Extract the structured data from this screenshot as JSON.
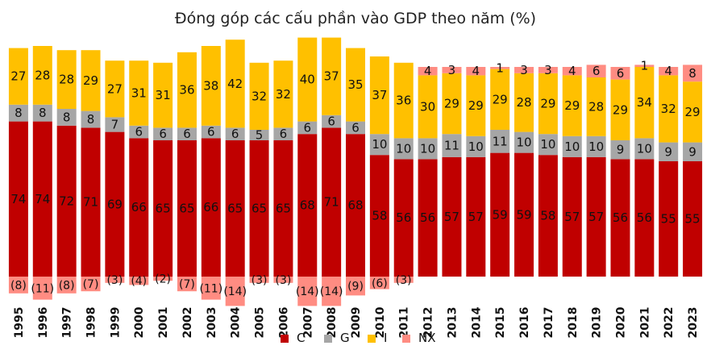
{
  "chart_data": {
    "type": "bar",
    "stacked": true,
    "title": "Đóng góp các cấu phần vào GDP theo năm (%)",
    "xlabel": "",
    "ylabel": "",
    "ylim": [
      -14,
      116
    ],
    "grid": false,
    "legend_position": "bottom",
    "categories": [
      "1995",
      "1996",
      "1997",
      "1998",
      "1999",
      "2000",
      "2001",
      "2002",
      "2003",
      "2004",
      "2005",
      "2006",
      "2007",
      "2008",
      "2009",
      "2010",
      "2011",
      "2012",
      "2013",
      "2014",
      "2015",
      "2016",
      "2017",
      "2018",
      "2019",
      "2020",
      "2021",
      "2022",
      "2023"
    ],
    "series": [
      {
        "name": "C",
        "color": "#c00000",
        "values": [
          74,
          74,
          72,
          71,
          69,
          66,
          65,
          65,
          66,
          65,
          65,
          65,
          68,
          71,
          68,
          58,
          56,
          56,
          57,
          57,
          59,
          59,
          58,
          57,
          57,
          56,
          56,
          55,
          55
        ]
      },
      {
        "name": "G",
        "color": "#a6a6a6",
        "values": [
          8,
          8,
          8,
          8,
          7,
          6,
          6,
          6,
          6,
          6,
          5,
          6,
          6,
          6,
          6,
          10,
          10,
          10,
          11,
          10,
          11,
          10,
          10,
          10,
          10,
          9,
          10,
          9,
          9
        ]
      },
      {
        "name": "I",
        "color": "#ffc000",
        "values": [
          27,
          28,
          28,
          29,
          27,
          31,
          31,
          36,
          38,
          42,
          32,
          32,
          40,
          37,
          35,
          37,
          36,
          30,
          29,
          29,
          29,
          28,
          29,
          29,
          28,
          29,
          34,
          32,
          29
        ]
      },
      {
        "name": "NX",
        "color": "#ff8c82",
        "values": [
          -8,
          -11,
          -8,
          -7,
          -3,
          -4,
          -2,
          -7,
          -11,
          -14,
          -3,
          -3,
          -14,
          -14,
          -9,
          -6,
          -3,
          4,
          3,
          4,
          1,
          3,
          3,
          4,
          6,
          6,
          1,
          4,
          8
        ]
      }
    ],
    "value_labels": {
      "C": [
        "74",
        "74",
        "72",
        "71",
        "69",
        "66",
        "65",
        "65",
        "66",
        "65",
        "65",
        "65",
        "68",
        "71",
        "68",
        "58",
        "56",
        "56",
        "57",
        "57",
        "59",
        "59",
        "58",
        "57",
        "57",
        "56",
        "56",
        "55",
        "55"
      ],
      "G": [
        "8",
        "8",
        "8",
        "8",
        "7",
        "6",
        "6",
        "6",
        "6",
        "6",
        "5",
        "6",
        "6",
        "6",
        "6",
        "10",
        "10",
        "10",
        "11",
        "10",
        "11",
        "10",
        "10",
        "10",
        "10",
        "9",
        "10",
        "9",
        "9"
      ],
      "I": [
        "27",
        "28",
        "28",
        "29",
        "27",
        "31",
        "31",
        "36",
        "38",
        "42",
        "32",
        "32",
        "40",
        "37",
        "35",
        "37",
        "36",
        "30",
        "29",
        "29",
        "29",
        "28",
        "29",
        "29",
        "28",
        "29",
        "34",
        "32",
        "29"
      ],
      "NX": [
        "(8)",
        "(11)",
        "(8)",
        "(7)",
        "(3)",
        "(4)",
        "(2)",
        "(7)",
        "(11)",
        "(14)",
        "(3)",
        "(3)",
        "(14)",
        "(14)",
        "(9)",
        "(6)",
        "(3)",
        "4",
        "3",
        "4",
        "1",
        "3",
        "3",
        "4",
        "6",
        "6",
        "1",
        "4",
        "8"
      ]
    }
  }
}
